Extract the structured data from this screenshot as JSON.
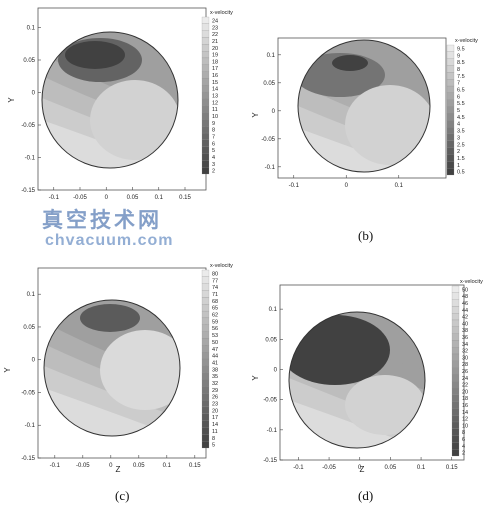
{
  "watermark": {
    "cn": "真空技术网",
    "en": "chvacuum.com"
  },
  "chart_data": [
    {
      "type": "heatmap",
      "panel_label": "",
      "legend_title": "x-velocity",
      "xlabel": "",
      "ylabel": "Y",
      "x_ticks": [
        "-0.1",
        "-0.05",
        "0",
        "0.05",
        "0.1",
        "0.15"
      ],
      "y_ticks": [
        "0.1",
        "0.05",
        "0",
        "-0.05",
        "-0.1",
        "-0.15"
      ],
      "xlim": [
        -0.13,
        0.19
      ],
      "ylim": [
        -0.15,
        0.13
      ],
      "legend_levels": [
        "24",
        "23",
        "22",
        "21",
        "20",
        "19",
        "18",
        "17",
        "16",
        "15",
        "14",
        "13",
        "12",
        "11",
        "10",
        "9",
        "8",
        "7",
        "6",
        "5",
        "4",
        "3",
        "2"
      ]
    },
    {
      "type": "heatmap",
      "panel_label": "(b)",
      "legend_title": "x-velocity",
      "xlabel": "",
      "ylabel": "Y",
      "x_ticks": [
        "-0.1",
        "0",
        "0.1"
      ],
      "y_ticks": [
        "0.1",
        "0.05",
        "0",
        "-0.05",
        "-0.1"
      ],
      "xlim": [
        -0.13,
        0.19
      ],
      "ylim": [
        -0.12,
        0.13
      ],
      "legend_levels": [
        "9.5",
        "9",
        "8.5",
        "8",
        "7.5",
        "7",
        "6.5",
        "6",
        "5.5",
        "5",
        "4.5",
        "4",
        "3.5",
        "3",
        "2.5",
        "2",
        "1.5",
        "1",
        "0.5"
      ]
    },
    {
      "type": "heatmap",
      "panel_label": "(c)",
      "legend_title": "x-velocity",
      "xlabel": "Z",
      "ylabel": "Y",
      "x_ticks": [
        "-0.1",
        "-0.05",
        "0",
        "0.05",
        "0.1",
        "0.15"
      ],
      "y_ticks": [
        "0.1",
        "0.05",
        "0",
        "-0.05",
        "-0.1",
        "-0.15"
      ],
      "xlim": [
        -0.13,
        0.17
      ],
      "ylim": [
        -0.15,
        0.14
      ],
      "legend_levels": [
        "80",
        "77",
        "74",
        "71",
        "68",
        "65",
        "62",
        "59",
        "56",
        "53",
        "50",
        "47",
        "44",
        "41",
        "38",
        "35",
        "32",
        "29",
        "26",
        "23",
        "20",
        "17",
        "14",
        "11",
        "8",
        "5"
      ]
    },
    {
      "type": "heatmap",
      "panel_label": "(d)",
      "legend_title": "x-velocity",
      "xlabel": "Z",
      "ylabel": "Y",
      "x_ticks": [
        "-0.1",
        "-0.05",
        "0",
        "0.05",
        "0.1",
        "0.15"
      ],
      "y_ticks": [
        "0.1",
        "0.05",
        "0",
        "-0.05",
        "-0.1",
        "-0.15"
      ],
      "xlim": [
        -0.13,
        0.17
      ],
      "ylim": [
        -0.15,
        0.14
      ],
      "legend_levels": [
        "50",
        "48",
        "46",
        "44",
        "42",
        "40",
        "38",
        "36",
        "34",
        "32",
        "30",
        "28",
        "26",
        "24",
        "22",
        "20",
        "18",
        "16",
        "14",
        "12",
        "10",
        "8",
        "6",
        "4",
        "2"
      ]
    }
  ]
}
